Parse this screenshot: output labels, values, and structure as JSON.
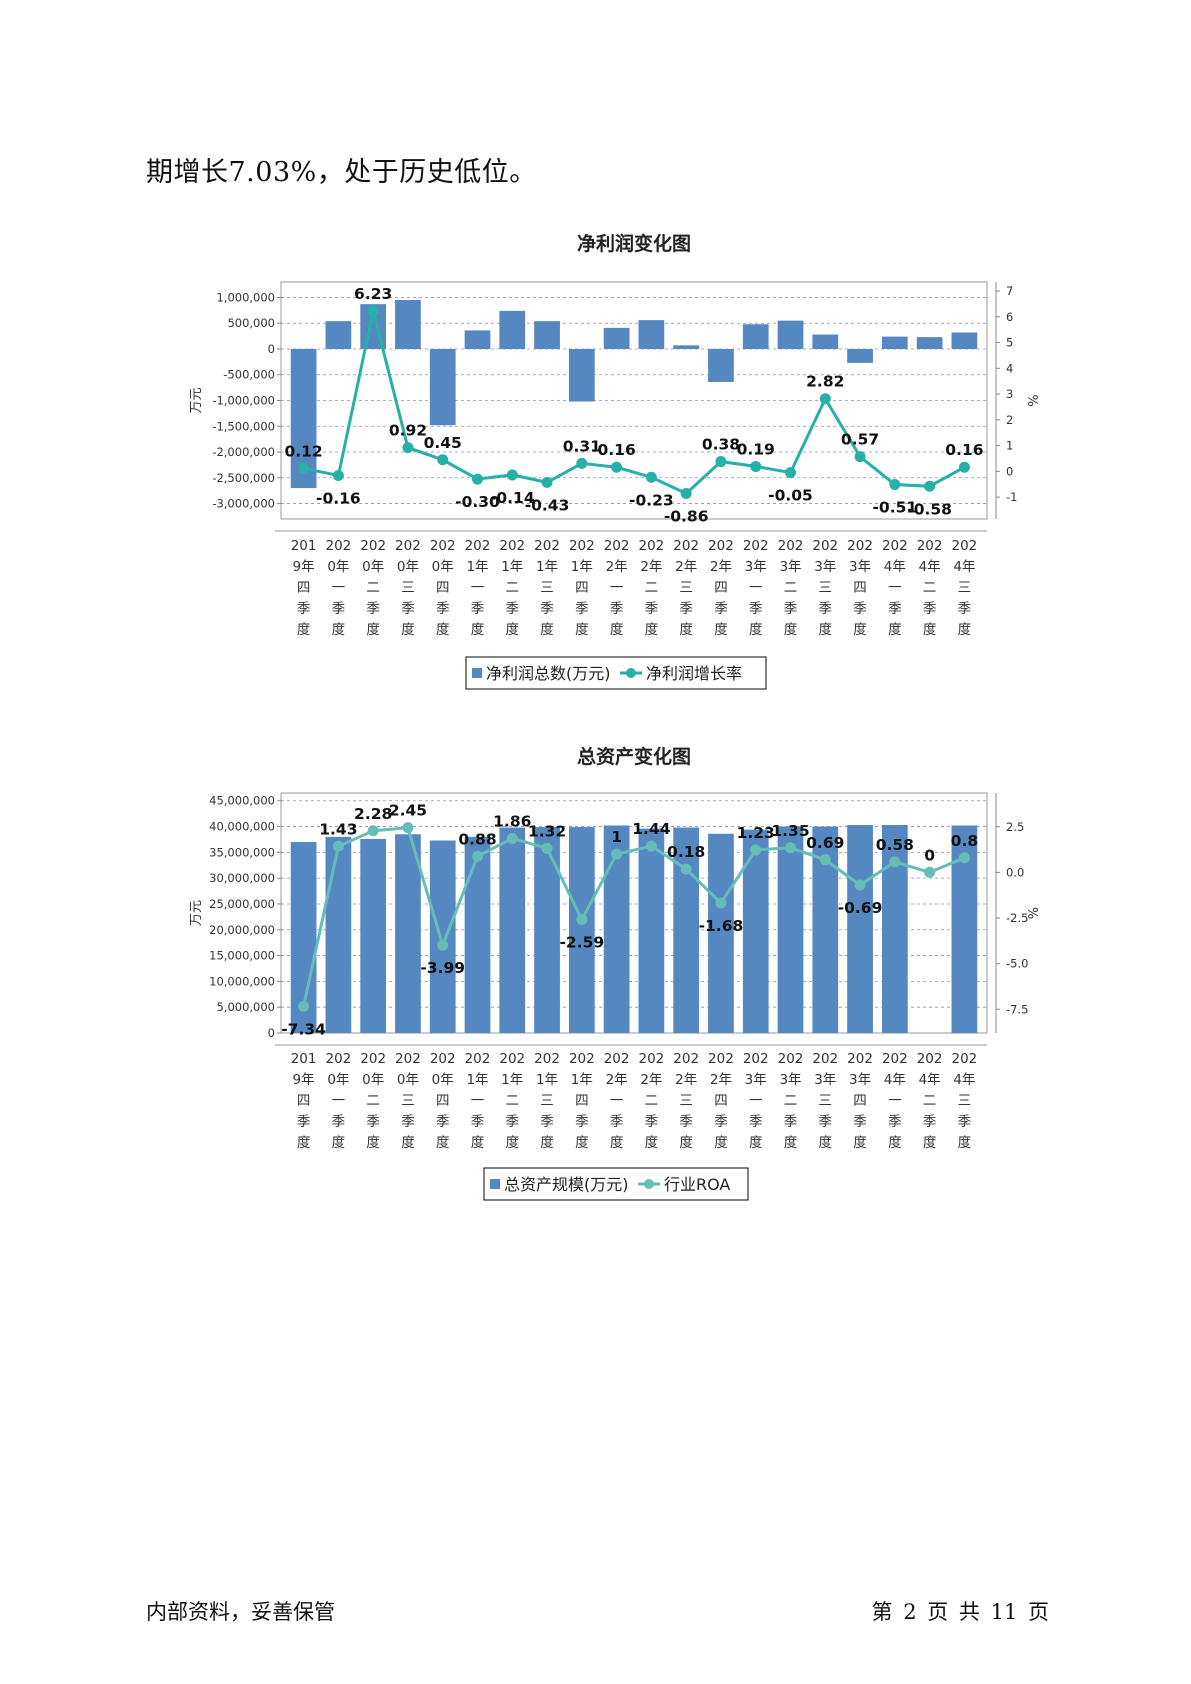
{
  "intro_text": "期增长7.03%，处于历史低位。",
  "footer": {
    "left": "内部资料，妥善保管",
    "right": "第 2 页   共 11 页"
  },
  "colors": {
    "bar": "#5588c1",
    "line1": "#26b0a6",
    "line2": "#66bdb8",
    "grid": "#8a8ae0"
  },
  "chart_data": [
    {
      "type": "bar",
      "title": "净利润变化图",
      "ylabel": "万元",
      "y2label": "%",
      "categories": [
        "2019年四季度",
        "2020年一季度",
        "2020年二季度",
        "2020年三季度",
        "2020年四季度",
        "2021年一季度",
        "2021年二季度",
        "2021年三季度",
        "2021年四季度",
        "2022年一季度",
        "2022年二季度",
        "2022年三季度",
        "2022年四季度",
        "2023年一季度",
        "2023年二季度",
        "2023年三季度",
        "2023年四季度",
        "2024年一季度",
        "2024年二季度",
        "2024年三季度"
      ],
      "category_lines": [
        [
          "201",
          "9年",
          "四",
          "季",
          "度"
        ],
        [
          "202",
          "0年",
          "一",
          "季",
          "度"
        ],
        [
          "202",
          "0年",
          "二",
          "季",
          "度"
        ],
        [
          "202",
          "0年",
          "三",
          "季",
          "度"
        ],
        [
          "202",
          "0年",
          "四",
          "季",
          "度"
        ],
        [
          "202",
          "1年",
          "一",
          "季",
          "度"
        ],
        [
          "202",
          "1年",
          "二",
          "季",
          "度"
        ],
        [
          "202",
          "1年",
          "三",
          "季",
          "度"
        ],
        [
          "202",
          "1年",
          "四",
          "季",
          "度"
        ],
        [
          "202",
          "2年",
          "一",
          "季",
          "度"
        ],
        [
          "202",
          "2年",
          "二",
          "季",
          "度"
        ],
        [
          "202",
          "2年",
          "三",
          "季",
          "度"
        ],
        [
          "202",
          "2年",
          "四",
          "季",
          "度"
        ],
        [
          "202",
          "3年",
          "一",
          "季",
          "度"
        ],
        [
          "202",
          "3年",
          "二",
          "季",
          "度"
        ],
        [
          "202",
          "3年",
          "三",
          "季",
          "度"
        ],
        [
          "202",
          "3年",
          "四",
          "季",
          "度"
        ],
        [
          "202",
          "4年",
          "一",
          "季",
          "度"
        ],
        [
          "202",
          "4年",
          "二",
          "季",
          "度"
        ],
        [
          "202",
          "4年",
          "三",
          "季",
          "度"
        ]
      ],
      "series": [
        {
          "name": "净利润总数(万元)",
          "type": "bar",
          "axis": "left",
          "values": [
            -2700000,
            540000,
            870000,
            950000,
            -1480000,
            360000,
            740000,
            540000,
            -1020000,
            410000,
            560000,
            70000,
            -640000,
            480000,
            550000,
            280000,
            -270000,
            240000,
            230000,
            320000
          ]
        },
        {
          "name": "净利润增长率",
          "type": "line",
          "axis": "right",
          "values": [
            0.12,
            -0.16,
            6.23,
            0.92,
            0.45,
            -0.3,
            -0.14,
            -0.43,
            0.31,
            0.16,
            -0.23,
            -0.86,
            0.38,
            0.19,
            -0.05,
            2.82,
            0.57,
            -0.51,
            -0.58,
            0.16
          ],
          "labels": [
            "0.12",
            "-0.16",
            "6.23",
            "0.92",
            "0.45",
            "-0.30",
            "-0.14",
            "-0.43",
            "0.31",
            "0.16",
            "-0.23",
            "-0.86",
            "0.38",
            "0.19",
            "-0.05",
            "2.82",
            "0.57",
            "-0.51",
            "-0.58",
            "0.16"
          ]
        }
      ],
      "ylim": [
        -3300000,
        1300000
      ],
      "yticks": [
        1000000,
        500000,
        0,
        -500000,
        -1000000,
        -1500000,
        -2000000,
        -2500000,
        -3000000
      ],
      "ytick_labels": [
        "1,000,000",
        "500,000",
        "0",
        "-500,000",
        "-1,000,000",
        "-1,500,000",
        "-2,000,000",
        "-2,500,000",
        "-3,000,000"
      ],
      "y2lim": [
        -1.85,
        7.35
      ],
      "y2ticks": [
        7,
        6,
        5,
        4,
        3,
        2,
        1,
        0,
        -1
      ],
      "y2tick_labels": [
        "7",
        "6",
        "5",
        "4",
        "3",
        "2",
        "1",
        "0",
        "-1"
      ],
      "grid": true,
      "legend": "bottom-center"
    },
    {
      "type": "bar",
      "title": "总资产变化图",
      "ylabel": "万元",
      "y2label": "%",
      "categories": [
        "2019年四季度",
        "2020年一季度",
        "2020年二季度",
        "2020年三季度",
        "2020年四季度",
        "2021年一季度",
        "2021年二季度",
        "2021年三季度",
        "2021年四季度",
        "2022年一季度",
        "2022年二季度",
        "2022年三季度",
        "2022年四季度",
        "2023年一季度",
        "2023年二季度",
        "2023年三季度",
        "2023年四季度",
        "2024年一季度",
        "2024年二季度",
        "2024年三季度"
      ],
      "category_lines": [
        [
          "201",
          "9年",
          "四",
          "季",
          "度"
        ],
        [
          "202",
          "0年",
          "一",
          "季",
          "度"
        ],
        [
          "202",
          "0年",
          "二",
          "季",
          "度"
        ],
        [
          "202",
          "0年",
          "三",
          "季",
          "度"
        ],
        [
          "202",
          "0年",
          "四",
          "季",
          "度"
        ],
        [
          "202",
          "1年",
          "一",
          "季",
          "度"
        ],
        [
          "202",
          "1年",
          "二",
          "季",
          "度"
        ],
        [
          "202",
          "1年",
          "三",
          "季",
          "度"
        ],
        [
          "202",
          "1年",
          "四",
          "季",
          "度"
        ],
        [
          "202",
          "2年",
          "一",
          "季",
          "度"
        ],
        [
          "202",
          "2年",
          "二",
          "季",
          "度"
        ],
        [
          "202",
          "2年",
          "三",
          "季",
          "度"
        ],
        [
          "202",
          "2年",
          "四",
          "季",
          "度"
        ],
        [
          "202",
          "3年",
          "一",
          "季",
          "度"
        ],
        [
          "202",
          "3年",
          "二",
          "季",
          "度"
        ],
        [
          "202",
          "3年",
          "三",
          "季",
          "度"
        ],
        [
          "202",
          "3年",
          "四",
          "季",
          "度"
        ],
        [
          "202",
          "4年",
          "一",
          "季",
          "度"
        ],
        [
          "202",
          "4年",
          "二",
          "季",
          "度"
        ],
        [
          "202",
          "4年",
          "三",
          "季",
          "度"
        ]
      ],
      "series": [
        {
          "name": "总资产规模(万元)",
          "type": "bar",
          "axis": "left",
          "values": [
            37000000,
            38000000,
            37600000,
            38500000,
            37300000,
            38000000,
            39800000,
            39900000,
            39900000,
            40200000,
            39600000,
            39800000,
            38600000,
            39400000,
            40000000,
            40000000,
            40300000,
            40300000,
            0,
            40200000
          ]
        },
        {
          "name": "行业ROA",
          "type": "line",
          "axis": "right",
          "values": [
            -7.34,
            1.43,
            2.28,
            2.45,
            -3.99,
            0.88,
            1.86,
            1.32,
            -2.59,
            1,
            1.44,
            0.18,
            -1.68,
            1.23,
            1.35,
            0.69,
            -0.69,
            0.58,
            0,
            0.8
          ],
          "labels": [
            "-7.34",
            "1.43",
            "2.28",
            "2.45",
            "-3.99",
            "0.88",
            "1.86",
            "1.32",
            "-2.59",
            "1",
            "1.44",
            "0.18",
            "-1.68",
            "1.23",
            "1.35",
            "0.69",
            "-0.69",
            "0.58",
            "0",
            "0.8"
          ]
        }
      ],
      "ylim": [
        0,
        46500000
      ],
      "yticks": [
        45000000,
        40000000,
        35000000,
        30000000,
        25000000,
        20000000,
        15000000,
        10000000,
        5000000,
        0
      ],
      "ytick_labels": [
        "45,000,000",
        "40,000,000",
        "35,000,000",
        "30,000,000",
        "25,000,000",
        "20,000,000",
        "15,000,000",
        "10,000,000",
        "5,000,000",
        "0"
      ],
      "y2lim": [
        -8.8,
        4.35
      ],
      "y2ticks": [
        2.5,
        0,
        -2.5,
        -5,
        -7.5
      ],
      "y2tick_labels": [
        "2.5",
        "0.0",
        "-2.5",
        "-5.0",
        "-7.5"
      ],
      "grid": true,
      "legend": "bottom-center"
    }
  ]
}
